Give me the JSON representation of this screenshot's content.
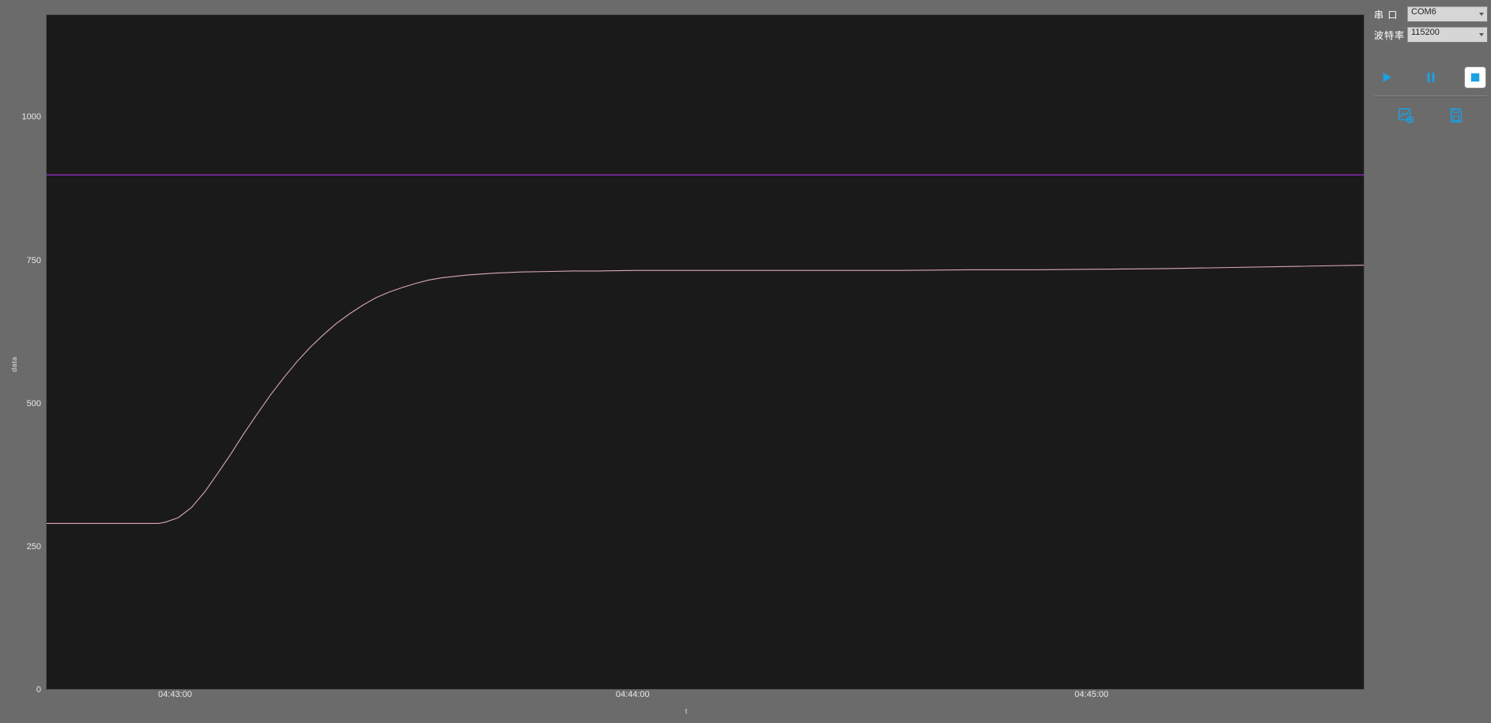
{
  "panel": {
    "port_label": "串  口",
    "port_value": "COM6",
    "baud_label": "波特率",
    "baud_value": "115200"
  },
  "colors": {
    "accent": "#1ba1e2",
    "panel_bg": "#6b6b6b",
    "plot_bg": "#1a1a1a",
    "plot_border": "#555555",
    "tick_text": "#e8e8e8",
    "threshold_line": "#9b2fcf",
    "data_line": "#d9a8b8",
    "select_bg": "#d6d6d6"
  },
  "chart": {
    "type": "line",
    "xlabel": "t",
    "ylabel": "data",
    "ylim": [
      0,
      1180
    ],
    "y_ticks": [
      0,
      250,
      500,
      750,
      1000
    ],
    "x_tick_labels": [
      "04:43:00",
      "04:44:00",
      "04:45:00"
    ],
    "x_tick_positions": [
      0.098,
      0.445,
      0.793
    ],
    "threshold": 900,
    "threshold_color": "#9b2fcf",
    "threshold_width": 1.2,
    "data_color": "#d9a8b8",
    "data_width": 1.1,
    "background_color": "#1a1a1a",
    "series": {
      "x": [
        0.0,
        0.02,
        0.04,
        0.06,
        0.078,
        0.085,
        0.09,
        0.1,
        0.11,
        0.12,
        0.13,
        0.14,
        0.15,
        0.16,
        0.17,
        0.18,
        0.19,
        0.2,
        0.21,
        0.22,
        0.23,
        0.24,
        0.25,
        0.26,
        0.27,
        0.28,
        0.29,
        0.3,
        0.32,
        0.34,
        0.36,
        0.38,
        0.4,
        0.42,
        0.45,
        0.48,
        0.5,
        0.55,
        0.6,
        0.65,
        0.7,
        0.75,
        0.8,
        0.85,
        0.9,
        0.95,
        1.0
      ],
      "y": [
        290,
        290,
        290,
        290,
        290,
        290,
        292,
        300,
        318,
        345,
        378,
        412,
        448,
        482,
        515,
        545,
        573,
        598,
        620,
        640,
        657,
        672,
        685,
        695,
        703,
        710,
        716,
        720,
        725,
        728,
        730,
        731,
        732,
        732,
        733,
        733,
        733,
        733,
        733,
        733,
        734,
        734,
        735,
        736,
        738,
        740,
        742
      ]
    }
  }
}
